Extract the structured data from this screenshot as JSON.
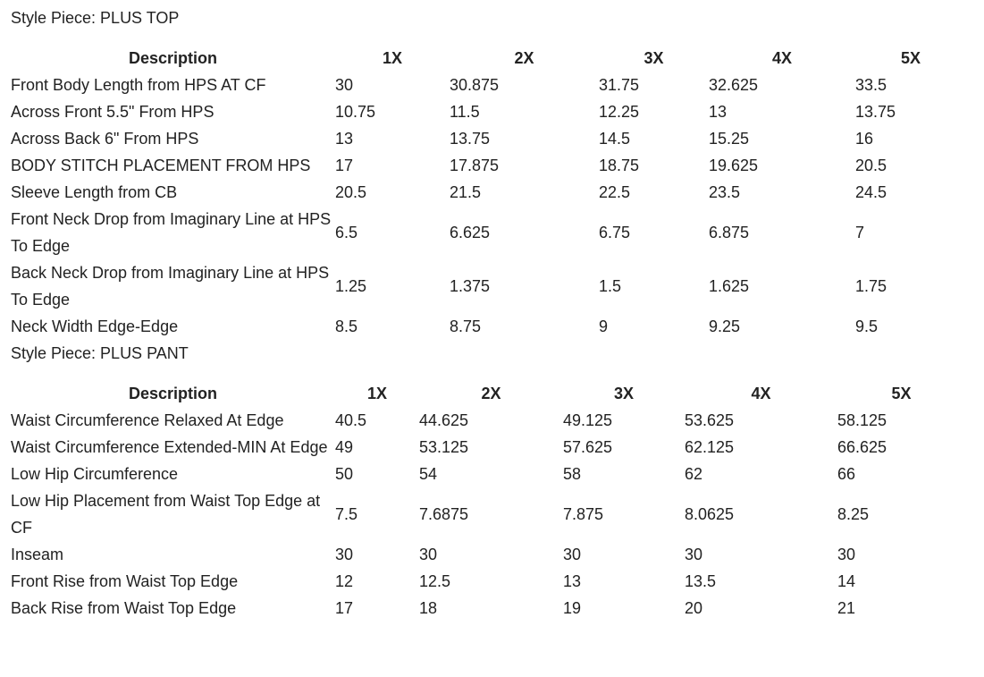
{
  "sections": [
    {
      "style_piece": "Style Piece: PLUS TOP",
      "header": [
        "Description",
        "1X",
        "2X",
        "3X",
        "4X",
        "5X"
      ],
      "rows": [
        [
          "Front Body Length from HPS AT CF",
          "30",
          "30.875",
          "31.75",
          "32.625",
          "33.5"
        ],
        [
          "Across Front 5.5\" From HPS",
          "10.75",
          "11.5",
          "12.25",
          "13",
          "13.75"
        ],
        [
          "Across Back 6\" From HPS",
          "13",
          "13.75",
          "14.5",
          "15.25",
          "16"
        ],
        [
          "BODY STITCH PLACEMENT FROM HPS",
          "17",
          "17.875",
          "18.75",
          "19.625",
          "20.5"
        ],
        [
          "Sleeve Length from CB",
          "20.5",
          "21.5",
          "22.5",
          "23.5",
          "24.5"
        ],
        [
          "Front Neck Drop from Imaginary Line at HPS To Edge",
          "6.5",
          "6.625",
          "6.75",
          "6.875",
          "7"
        ],
        [
          "Back Neck Drop from Imaginary Line at HPS To Edge",
          "1.25",
          "1.375",
          "1.5",
          "1.625",
          "1.75"
        ],
        [
          "Neck Width Edge-Edge",
          "8.5",
          "8.75",
          "9",
          "9.25",
          "9.5"
        ]
      ]
    },
    {
      "style_piece": "Style Piece: PLUS PANT",
      "header": [
        "Description",
        "1X",
        "2X",
        "3X",
        "4X",
        "5X"
      ],
      "rows": [
        [
          "Waist Circumference Relaxed At Edge",
          "40.5",
          "44.625",
          "49.125",
          "53.625",
          "58.125"
        ],
        [
          "Waist Circumference Extended-MIN At Edge",
          "49",
          "53.125",
          "57.625",
          "62.125",
          "66.625"
        ],
        [
          "Low Hip Circumference",
          "50",
          "54",
          "58",
          "62",
          "66"
        ],
        [
          "Low Hip Placement from Waist Top Edge at CF",
          "7.5",
          "7.6875",
          "7.875",
          "8.0625",
          "8.25"
        ],
        [
          "Inseam",
          "30",
          "30",
          "30",
          "30",
          "30"
        ],
        [
          "Front Rise from Waist Top Edge",
          "12",
          "12.5",
          "13",
          "13.5",
          "14"
        ],
        [
          "Back Rise from Waist Top Edge",
          "17",
          "18",
          "19",
          "20",
          "21"
        ]
      ]
    }
  ]
}
